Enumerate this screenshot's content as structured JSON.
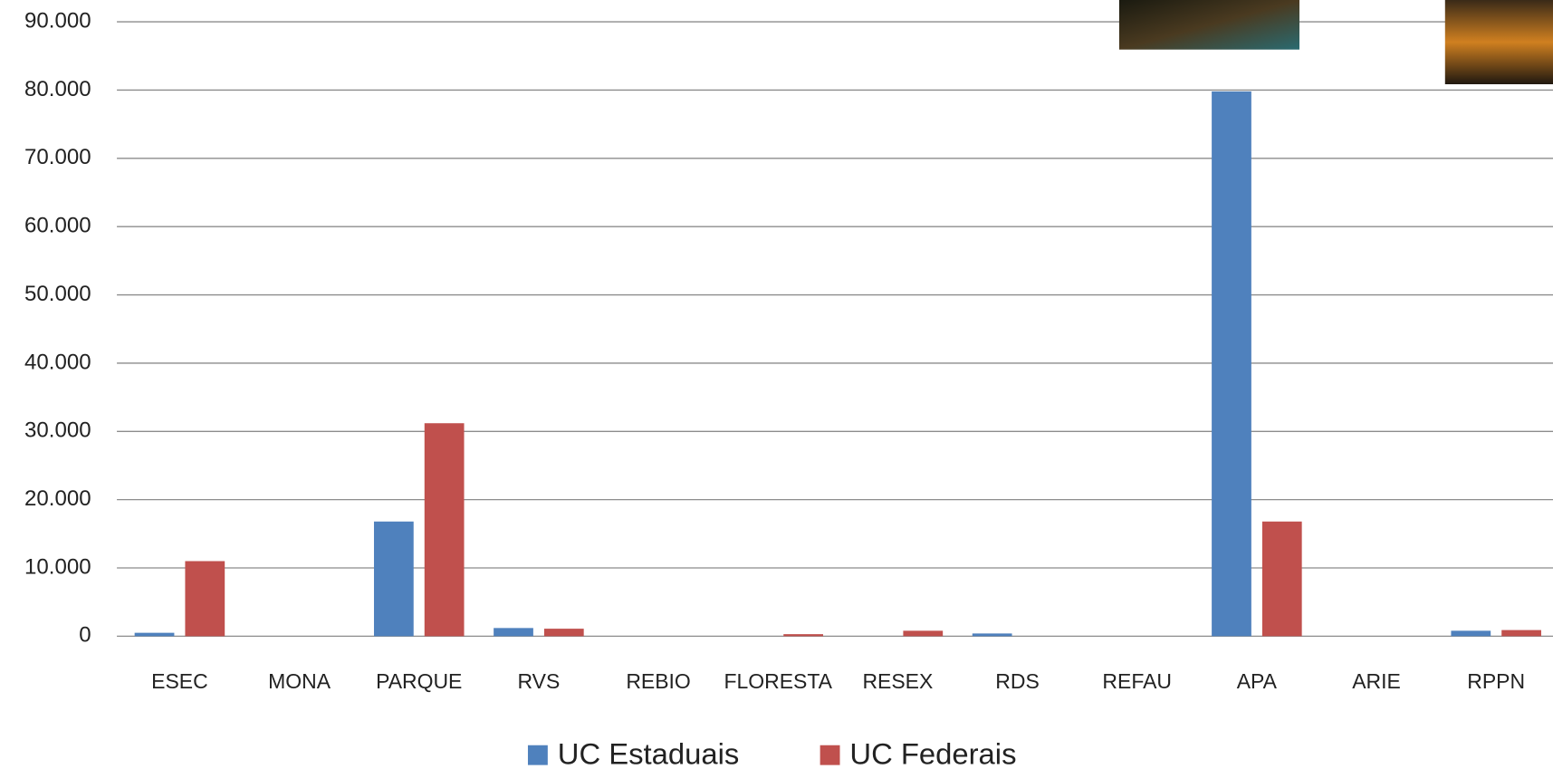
{
  "chart_data": {
    "type": "bar",
    "categories": [
      "ESEC",
      "MONA",
      "PARQUE",
      "RVS",
      "REBIO",
      "FLORESTA",
      "RESEX",
      "RDS",
      "REFAU",
      "APA",
      "ARIE",
      "RPPN"
    ],
    "series": [
      {
        "name": "UC Estaduais",
        "color": "#4f81bd",
        "values": [
          500,
          0,
          16800,
          1200,
          0,
          0,
          0,
          400,
          0,
          79800,
          0,
          800
        ]
      },
      {
        "name": "UC Federais",
        "color": "#c0504d",
        "values": [
          11000,
          0,
          31200,
          1100,
          0,
          300,
          800,
          0,
          0,
          16800,
          0,
          900
        ]
      }
    ],
    "ylim": [
      0,
      90000
    ],
    "yticks": [
      0,
      {
        "value": 10000,
        "label": "10.000"
      },
      {
        "value": 20000,
        "label": "20.000"
      },
      {
        "value": 30000,
        "label": "30.000"
      },
      {
        "value": 40000,
        "label": "40.000"
      },
      {
        "value": 50000,
        "label": "50.000"
      },
      {
        "value": 60000,
        "label": "60.000"
      },
      {
        "value": 70000,
        "label": "70.000"
      },
      {
        "value": 80000,
        "label": "80.000"
      },
      {
        "value": 90000,
        "label": "90.000"
      }
    ],
    "grid": true,
    "legend": "bottom"
  }
}
